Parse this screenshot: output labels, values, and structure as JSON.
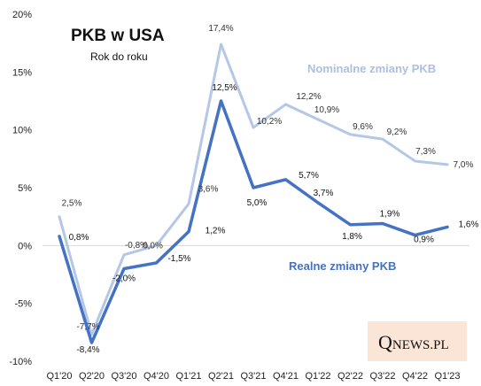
{
  "chart_data": {
    "type": "line",
    "title": "PKB w USA",
    "subtitle": "Rok do roku",
    "categories": [
      "Q1'20",
      "Q2'20",
      "Q3'20",
      "Q4'20",
      "Q1'21",
      "Q2'21",
      "Q3'21",
      "Q4'21",
      "Q1'22",
      "Q2'22",
      "Q3'22",
      "Q4'22",
      "Q1'23"
    ],
    "y_ticks": [
      "20%",
      "15%",
      "10%",
      "5%",
      "0%",
      "-5%",
      "-10%"
    ],
    "ylim": [
      -10,
      20
    ],
    "grid": false,
    "series": [
      {
        "name": "Nominalne zmiany PKB",
        "color": "#b4c7e7",
        "values": [
          2.5,
          -7.7,
          -0.8,
          0.0,
          3.6,
          17.4,
          10.2,
          12.2,
          10.9,
          9.6,
          9.2,
          7.3,
          7.0
        ],
        "labels": [
          "2,5%",
          "-7,7%",
          "-0,8%",
          "0,0%",
          "3,6%",
          "17,4%",
          "10,2%",
          "12,2%",
          "10,9%",
          "9,6%",
          "9,2%",
          "7,3%",
          "7,0%"
        ]
      },
      {
        "name": "Realne zmiany PKB",
        "color": "#4472c4",
        "values": [
          0.8,
          -8.4,
          -2.0,
          -1.5,
          1.2,
          12.5,
          5.0,
          5.7,
          3.7,
          1.8,
          1.9,
          0.9,
          1.6
        ],
        "labels": [
          "0,8%",
          "-8,4%",
          "-2,0%",
          "-1,5%",
          "1,2%",
          "12,5%",
          "5,0%",
          "5,7%",
          "3,7%",
          "1,8%",
          "1,9%",
          "0,9%",
          "1,6%"
        ]
      }
    ]
  },
  "logo": {
    "q": "Q",
    "rest": "NEWS.PL"
  }
}
